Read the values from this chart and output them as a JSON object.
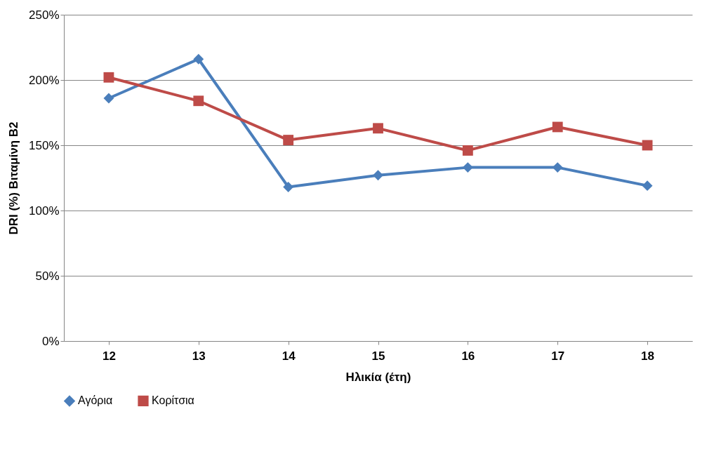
{
  "chart_data": {
    "type": "line",
    "xlabel": "Ηλικία (έτη)",
    "ylabel": "DRI (%) Βιταμίνη B2",
    "categories": [
      "12",
      "13",
      "14",
      "15",
      "16",
      "17",
      "18"
    ],
    "series": [
      {
        "name": "Αγόρια",
        "color": "#4a7ebb",
        "marker": "diamond",
        "values": [
          186,
          216,
          118,
          127,
          133,
          133,
          119
        ]
      },
      {
        "name": "Κορίτσια",
        "color": "#be4b48",
        "marker": "square",
        "values": [
          202,
          184,
          154,
          163,
          146,
          164,
          150
        ]
      }
    ],
    "ylim": [
      0,
      250
    ],
    "yticks": [
      {
        "value": 0,
        "label": "0%"
      },
      {
        "value": 50,
        "label": "50%"
      },
      {
        "value": 100,
        "label": "100%"
      },
      {
        "value": 150,
        "label": "150%"
      },
      {
        "value": 200,
        "label": "200%"
      },
      {
        "value": 250,
        "label": "250%"
      }
    ],
    "grid": "y",
    "legend": "bottom"
  }
}
